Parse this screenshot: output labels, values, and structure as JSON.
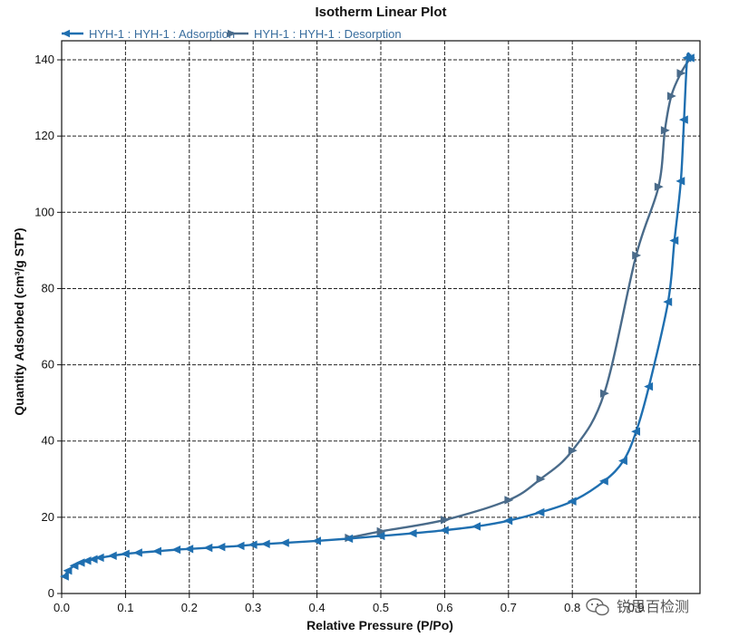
{
  "chart_data": {
    "type": "line",
    "title": "Isotherm Linear Plot",
    "xlabel": "Relative Pressure (P/Po)",
    "ylabel": "Quantity Adsorbed (cm³/g STP)",
    "xlim": [
      0,
      1.0
    ],
    "ylim": [
      0,
      145
    ],
    "x_ticks": [
      "0.0",
      "0.1",
      "0.2",
      "0.3",
      "0.4",
      "0.5",
      "0.6",
      "0.7",
      "0.8",
      "0.9"
    ],
    "y_ticks": [
      "0",
      "20",
      "40",
      "60",
      "80",
      "100",
      "120",
      "140"
    ],
    "grid": true,
    "legend_position": "top-left",
    "series": [
      {
        "name": "HYH-1 : HYH-1 : Adsorption",
        "color": "#1f6fb0",
        "marker": "triangle-left",
        "x": [
          0.005,
          0.01,
          0.02,
          0.03,
          0.04,
          0.05,
          0.06,
          0.08,
          0.1,
          0.12,
          0.15,
          0.18,
          0.2,
          0.23,
          0.25,
          0.28,
          0.3,
          0.32,
          0.35,
          0.4,
          0.45,
          0.5,
          0.55,
          0.6,
          0.65,
          0.7,
          0.75,
          0.8,
          0.85,
          0.88,
          0.9,
          0.92,
          0.95,
          0.96,
          0.97,
          0.975,
          0.98,
          0.985
        ],
        "y": [
          4.5,
          6.0,
          7.3,
          8.1,
          8.6,
          9.0,
          9.4,
          9.9,
          10.4,
          10.7,
          11.1,
          11.5,
          11.7,
          12.0,
          12.2,
          12.5,
          12.8,
          13.0,
          13.3,
          13.8,
          14.4,
          15.1,
          15.8,
          16.6,
          17.6,
          19.1,
          21.3,
          24.2,
          29.5,
          34.8,
          42.5,
          54.3,
          76.5,
          92.6,
          108.2,
          124.3,
          140.5,
          140.5
        ]
      },
      {
        "name": "HYH-1 : HYH-1 : Desorption",
        "color": "#4a6b8a",
        "marker": "triangle-right",
        "x": [
          0.985,
          0.97,
          0.955,
          0.945,
          0.935,
          0.9,
          0.85,
          0.8,
          0.75,
          0.7,
          0.6,
          0.5,
          0.45
        ],
        "y": [
          140.5,
          136.5,
          130.5,
          121.5,
          106.7,
          88.7,
          52.5,
          37.5,
          30.0,
          24.5,
          19.3,
          16.3,
          14.6
        ]
      }
    ]
  },
  "watermark": {
    "text": "锐思百检测"
  }
}
